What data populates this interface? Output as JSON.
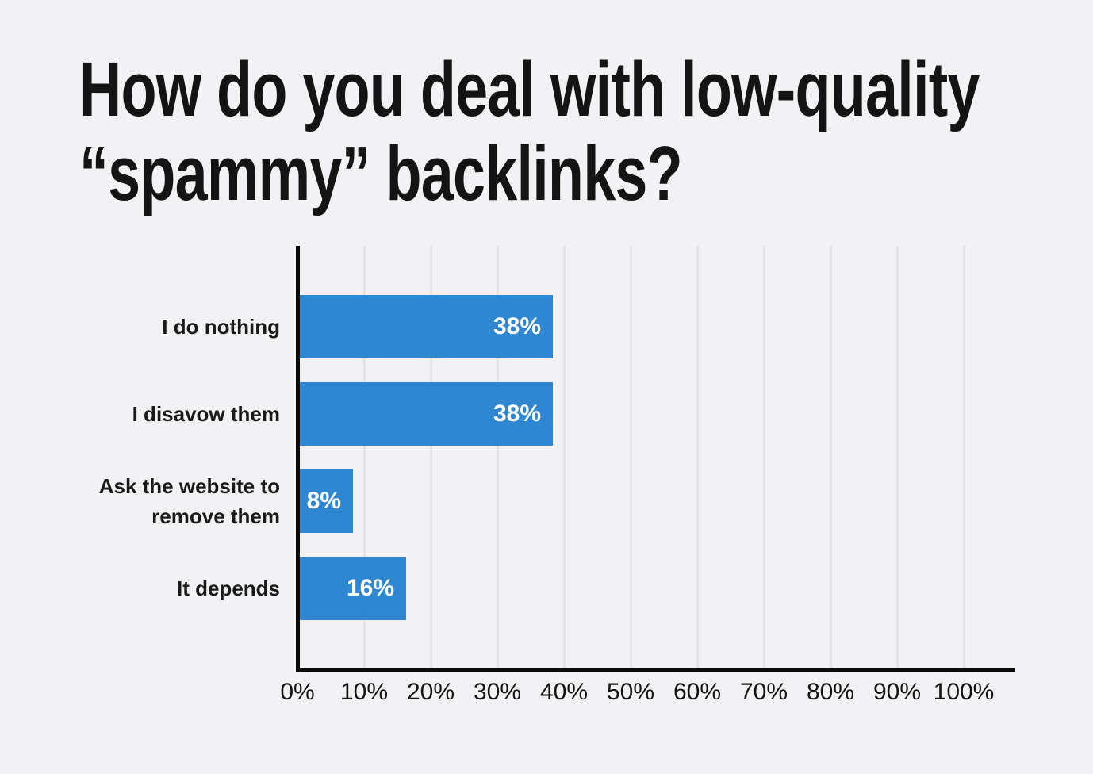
{
  "title": {
    "line1": "How do you deal with low-quality",
    "line2": "“spammy” backlinks?"
  },
  "chart_data": {
    "type": "bar",
    "orientation": "horizontal",
    "title": "How do you deal with low-quality “spammy” backlinks?",
    "categories": [
      "I do nothing",
      "I disavow them",
      "Ask the website to remove them",
      "It depends"
    ],
    "values": [
      38,
      38,
      8,
      16
    ],
    "bar_labels": [
      "38%",
      "38%",
      "8%",
      "16%"
    ],
    "x_ticks": [
      "0%",
      "10%",
      "20%",
      "30%",
      "40%",
      "50%",
      "60%",
      "70%",
      "80%",
      "90%",
      "100%"
    ],
    "xlim": [
      0,
      100
    ],
    "xlabel": "",
    "ylabel": "",
    "grid": "vertical",
    "legend": "none",
    "colors": {
      "bar": "#2f86d1",
      "background": "#f2f2f4",
      "gridline": "#e4e4e8",
      "axis": "#0a0a0a",
      "bar_label_text": "#ffffff",
      "title_text": "#141414",
      "category_text": "#1a1a1a"
    }
  }
}
